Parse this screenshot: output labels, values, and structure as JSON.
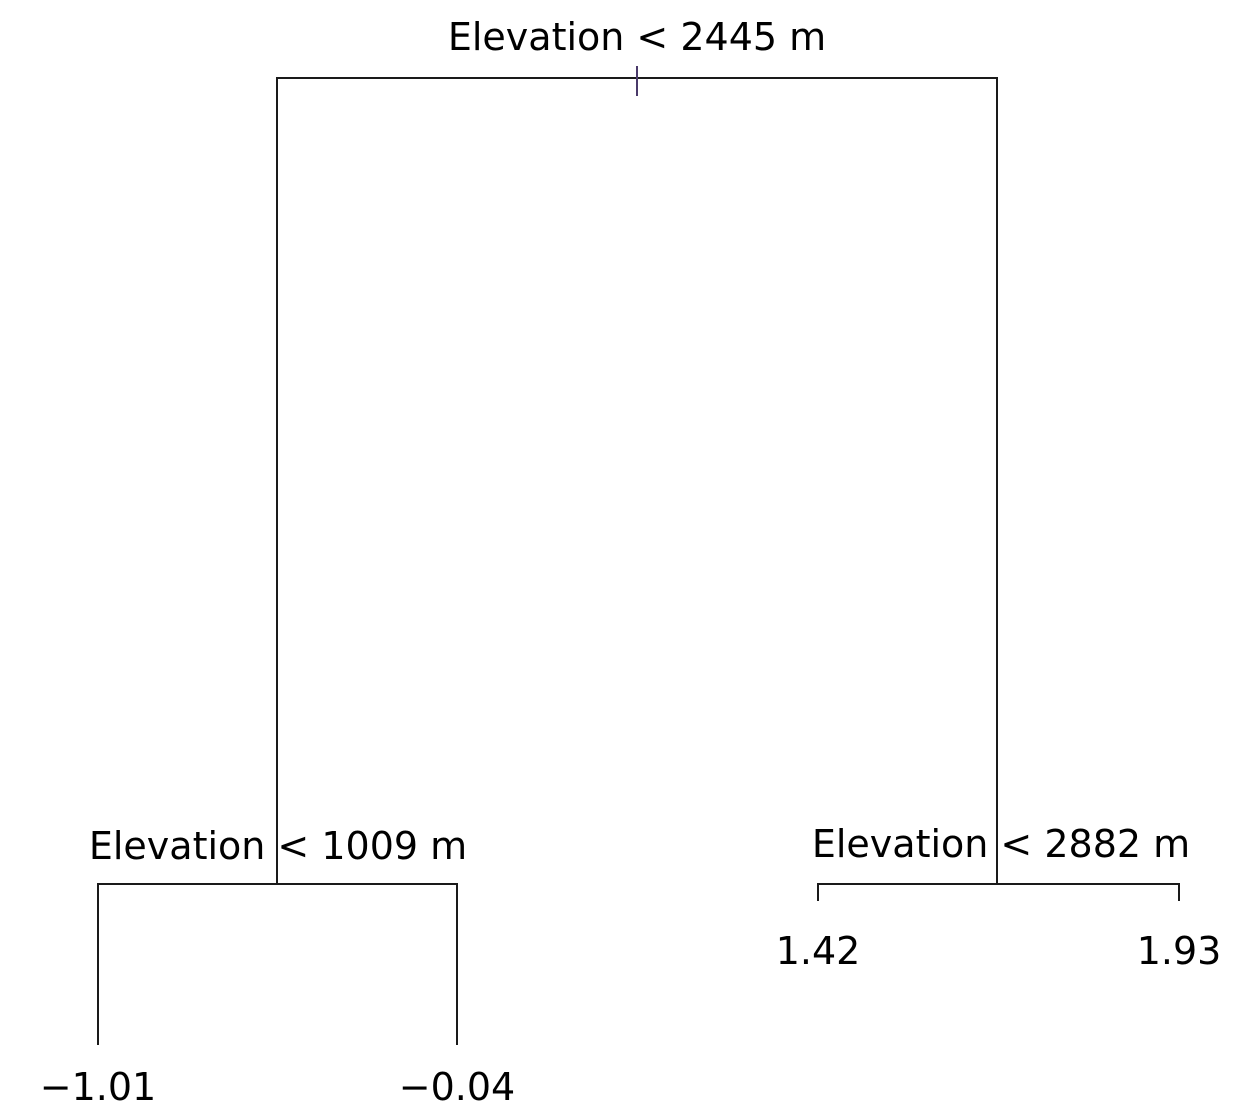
{
  "tree": {
    "root": {
      "split": "Elevation < 2445 m",
      "left": {
        "split": "Elevation < 1009 m",
        "left": {
          "value": "−1.01"
        },
        "right": {
          "value": "−0.04"
        }
      },
      "right": {
        "split": "Elevation < 2882 m",
        "left": {
          "value": "1.42"
        },
        "right": {
          "value": "1.93"
        }
      }
    }
  }
}
